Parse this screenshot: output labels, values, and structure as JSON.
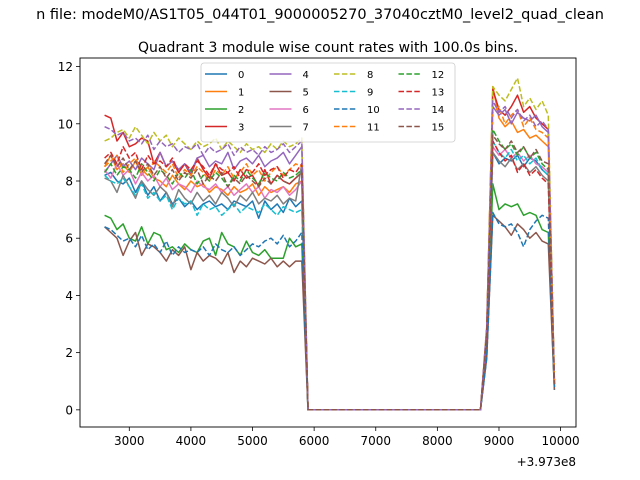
{
  "figure": {
    "suptitle": "n file: modeM0/AS1T05_044T01_9000005270_37040cztM0_level2_quad_clean",
    "offset_label": "+3.973e8"
  },
  "colors": {
    "tab10": [
      "#1f77b4",
      "#ff7f0e",
      "#2ca02c",
      "#d62728",
      "#9467bd",
      "#8c564b",
      "#e377c2",
      "#7f7f7f",
      "#bcbd22",
      "#17becf",
      "#1f77b4",
      "#ff7f0e",
      "#2ca02c",
      "#d62728",
      "#9467bd",
      "#8c564b"
    ]
  },
  "chart_data": {
    "type": "line",
    "title": "Quadrant 3 module wise count rates with 100.0s bins.",
    "xlabel": "",
    "ylabel": "",
    "xlim": [
      2200,
      10250
    ],
    "ylim": [
      -0.6,
      12.3
    ],
    "xticks": [
      3000,
      4000,
      5000,
      6000,
      7000,
      8000,
      9000,
      10000
    ],
    "yticks": [
      0,
      2,
      4,
      6,
      8,
      10,
      12
    ],
    "grid": false,
    "legend": {
      "placement": "upper-center",
      "columns": 4
    },
    "x": [
      2600,
      2700,
      2800,
      2900,
      3000,
      3100,
      3200,
      3300,
      3400,
      3500,
      3600,
      3700,
      3800,
      3900,
      4000,
      4100,
      4200,
      4300,
      4400,
      4500,
      4600,
      4700,
      4800,
      4900,
      5000,
      5100,
      5200,
      5300,
      5400,
      5500,
      5600,
      5700,
      5800,
      5900,
      6000,
      8700,
      8800,
      8900,
      9000,
      9100,
      9200,
      9300,
      9400,
      9500,
      9600,
      9700,
      9800,
      9900
    ],
    "series": [
      {
        "name": "0",
        "style": "solid",
        "values": [
          8.2,
          8.3,
          8.0,
          7.9,
          8.1,
          7.6,
          8.0,
          7.5,
          7.8,
          7.3,
          7.6,
          7.2,
          7.4,
          7.1,
          7.3,
          7.0,
          7.2,
          7.3,
          7.1,
          7.2,
          7.0,
          7.3,
          7.2,
          7.1,
          7.3,
          6.7,
          7.3,
          7.0,
          7.2,
          6.9,
          7.4,
          7.1,
          7.3,
          0.0,
          0.0,
          0.0,
          2.5,
          9.0,
          8.6,
          8.8,
          8.7,
          8.9,
          8.5,
          8.8,
          8.7,
          8.4,
          8.2,
          0.8
        ]
      },
      {
        "name": "1",
        "style": "solid",
        "values": [
          8.5,
          8.9,
          8.4,
          8.6,
          8.3,
          8.7,
          8.2,
          8.5,
          8.1,
          8.0,
          7.8,
          8.2,
          7.9,
          7.7,
          8.0,
          7.8,
          7.9,
          7.6,
          7.8,
          7.7,
          7.5,
          7.8,
          7.6,
          7.7,
          7.9,
          7.5,
          7.8,
          7.6,
          7.7,
          7.8,
          7.6,
          7.9,
          8.0,
          0.0,
          0.0,
          0.0,
          2.7,
          11.3,
          10.2,
          9.9,
          10.1,
          9.7,
          9.8,
          9.5,
          9.6,
          9.4,
          9.2,
          0.9
        ]
      },
      {
        "name": "2",
        "style": "solid",
        "values": [
          6.8,
          6.7,
          6.3,
          6.5,
          6.0,
          5.9,
          6.4,
          5.8,
          6.2,
          6.1,
          5.6,
          5.7,
          5.5,
          5.8,
          5.6,
          5.5,
          5.9,
          6.0,
          5.4,
          6.2,
          5.8,
          5.7,
          5.4,
          5.9,
          5.5,
          5.4,
          5.6,
          5.3,
          5.3,
          5.3,
          6.0,
          5.7,
          5.8,
          0.0,
          0.0,
          0.0,
          1.9,
          7.9,
          7.0,
          7.2,
          7.1,
          7.2,
          6.8,
          6.9,
          6.8,
          6.3,
          6.2,
          0.7
        ]
      },
      {
        "name": "3",
        "style": "solid",
        "values": [
          10.3,
          10.2,
          9.4,
          9.7,
          9.2,
          9.3,
          9.5,
          9.4,
          8.6,
          9.0,
          8.5,
          8.7,
          8.3,
          8.6,
          8.2,
          8.8,
          8.4,
          8.1,
          8.6,
          8.2,
          8.3,
          8.0,
          8.4,
          8.1,
          8.2,
          7.8,
          8.4,
          7.9,
          8.2,
          8.0,
          7.9,
          8.1,
          8.3,
          0.0,
          0.0,
          0.0,
          2.8,
          11.2,
          10.5,
          10.3,
          10.6,
          11.0,
          10.4,
          10.6,
          10.2,
          10.0,
          9.8,
          1.0
        ]
      },
      {
        "name": "4",
        "style": "solid",
        "values": [
          8.3,
          8.6,
          8.9,
          8.5,
          8.7,
          8.4,
          8.8,
          8.6,
          8.4,
          9.0,
          8.5,
          8.7,
          8.4,
          8.6,
          8.3,
          8.8,
          8.9,
          8.5,
          8.7,
          8.6,
          9.0,
          8.4,
          8.7,
          8.8,
          8.6,
          8.9,
          8.5,
          8.7,
          8.8,
          9.0,
          8.6,
          8.9,
          9.2,
          0.0,
          0.0,
          0.0,
          2.6,
          10.6,
          10.3,
          10.5,
          10.0,
          10.4,
          10.2,
          10.1,
          10.3,
          9.9,
          9.7,
          0.9
        ]
      },
      {
        "name": "5",
        "style": "solid",
        "values": [
          6.4,
          6.2,
          6.0,
          5.4,
          5.9,
          6.2,
          5.4,
          5.8,
          5.7,
          5.5,
          5.2,
          5.6,
          5.4,
          5.7,
          4.9,
          5.5,
          5.2,
          5.4,
          5.3,
          5.1,
          5.5,
          4.8,
          5.2,
          5.0,
          5.3,
          5.2,
          5.1,
          5.3,
          5.0,
          5.2,
          5.0,
          5.2,
          5.2,
          0.0,
          0.0,
          0.0,
          1.8,
          6.8,
          6.6,
          6.4,
          6.1,
          6.5,
          6.3,
          6.0,
          6.2,
          5.9,
          5.8,
          0.7
        ]
      },
      {
        "name": "6",
        "style": "solid",
        "values": [
          8.4,
          8.1,
          8.6,
          8.2,
          8.4,
          7.9,
          8.3,
          8.0,
          8.2,
          7.8,
          8.1,
          7.7,
          7.9,
          7.8,
          7.6,
          8.0,
          7.8,
          7.7,
          7.9,
          7.6,
          7.8,
          7.5,
          7.7,
          7.9,
          7.6,
          7.8,
          7.4,
          7.7,
          7.6,
          7.8,
          7.5,
          7.7,
          8.0,
          0.0,
          0.0,
          0.0,
          2.7,
          9.2,
          8.9,
          9.1,
          8.8,
          9.0,
          8.7,
          8.9,
          8.6,
          8.5,
          8.3,
          0.9
        ]
      },
      {
        "name": "7",
        "style": "solid",
        "values": [
          8.1,
          8.0,
          7.6,
          8.2,
          7.8,
          7.4,
          8.0,
          7.7,
          7.5,
          7.8,
          7.6,
          7.1,
          7.7,
          7.4,
          7.2,
          7.6,
          7.3,
          7.5,
          7.2,
          7.6,
          7.4,
          7.1,
          7.5,
          7.3,
          7.6,
          7.2,
          7.4,
          7.3,
          7.5,
          7.2,
          7.4,
          7.3,
          8.6,
          0.0,
          0.0,
          0.0,
          2.6,
          9.0,
          8.7,
          8.5,
          8.8,
          8.4,
          8.6,
          8.3,
          8.5,
          8.2,
          8.0,
          0.8
        ]
      },
      {
        "name": "8",
        "style": "dashed",
        "values": [
          9.4,
          9.5,
          9.7,
          9.8,
          9.5,
          9.9,
          9.6,
          9.3,
          9.7,
          9.4,
          9.6,
          9.2,
          9.5,
          9.3,
          9.1,
          9.4,
          9.2,
          9.3,
          9.5,
          9.1,
          9.4,
          9.2,
          9.0,
          9.3,
          9.1,
          9.2,
          9.0,
          9.3,
          9.1,
          9.4,
          9.2,
          9.3,
          9.5,
          0.0,
          0.0,
          0.0,
          2.9,
          11.3,
          11.0,
          10.8,
          11.2,
          11.6,
          10.6,
          10.9,
          10.5,
          10.8,
          10.3,
          1.0
        ]
      },
      {
        "name": "9",
        "style": "dashed",
        "values": [
          8.2,
          8.0,
          7.9,
          8.1,
          7.8,
          7.5,
          7.9,
          7.4,
          7.6,
          7.3,
          7.5,
          7.0,
          7.4,
          7.2,
          7.3,
          6.8,
          7.2,
          7.0,
          7.1,
          6.8,
          7.0,
          7.2,
          6.9,
          7.1,
          7.0,
          6.9,
          7.2,
          7.0,
          6.8,
          7.1,
          7.0,
          6.9,
          7.0,
          0.0,
          0.0,
          0.0,
          2.5,
          9.4,
          9.0,
          8.8,
          9.1,
          8.7,
          8.9,
          8.6,
          8.8,
          8.4,
          8.2,
          0.8
        ]
      },
      {
        "name": "10",
        "style": "dashed",
        "values": [
          6.4,
          6.3,
          6.1,
          5.9,
          6.0,
          5.7,
          6.1,
          5.6,
          5.8,
          5.5,
          5.9,
          5.4,
          5.7,
          5.5,
          5.6,
          5.5,
          5.7,
          5.4,
          5.8,
          5.6,
          5.5,
          5.7,
          5.4,
          5.6,
          5.8,
          5.7,
          5.9,
          6.0,
          5.8,
          6.1,
          5.7,
          5.9,
          6.2,
          0.0,
          0.0,
          0.0,
          1.8,
          6.9,
          6.5,
          6.4,
          6.5,
          6.2,
          5.7,
          6.3,
          6.6,
          6.8,
          6.7,
          0.7
        ]
      },
      {
        "name": "11",
        "style": "dashed",
        "values": [
          8.5,
          8.7,
          8.9,
          8.3,
          8.6,
          8.8,
          8.4,
          8.2,
          8.7,
          8.5,
          8.3,
          8.6,
          8.1,
          8.4,
          8.2,
          8.5,
          8.3,
          8.0,
          8.4,
          8.2,
          8.5,
          8.1,
          8.3,
          8.6,
          8.2,
          8.4,
          8.0,
          8.3,
          8.5,
          8.2,
          8.4,
          8.6,
          8.5,
          0.0,
          0.0,
          0.0,
          2.8,
          10.4,
          10.6,
          10.0,
          10.3,
          10.5,
          9.9,
          10.2,
          9.8,
          9.7,
          9.5,
          1.0
        ]
      },
      {
        "name": "12",
        "style": "dashed",
        "values": [
          8.3,
          8.6,
          8.2,
          8.5,
          8.4,
          8.1,
          8.6,
          8.3,
          8.0,
          8.4,
          8.2,
          7.9,
          8.3,
          8.1,
          8.4,
          7.9,
          8.2,
          8.0,
          8.3,
          8.1,
          7.8,
          8.2,
          8.0,
          8.4,
          8.1,
          7.9,
          8.3,
          8.1,
          8.0,
          8.3,
          8.1,
          8.2,
          8.4,
          0.0,
          0.0,
          0.0,
          2.7,
          9.8,
          9.4,
          9.1,
          9.3,
          8.9,
          9.2,
          8.8,
          9.0,
          8.6,
          8.4,
          0.9
        ]
      },
      {
        "name": "13",
        "style": "dashed",
        "values": [
          8.8,
          9.0,
          8.6,
          9.2,
          8.8,
          9.0,
          8.4,
          8.9,
          8.6,
          8.7,
          8.5,
          8.8,
          8.3,
          8.6,
          8.4,
          8.7,
          8.5,
          8.2,
          8.6,
          8.4,
          8.3,
          8.5,
          8.1,
          8.4,
          8.3,
          8.6,
          8.2,
          8.4,
          8.5,
          8.1,
          8.4,
          8.3,
          8.6,
          0.0,
          0.0,
          0.0,
          2.7,
          9.4,
          9.0,
          8.7,
          8.9,
          8.3,
          8.6,
          8.2,
          8.4,
          8.1,
          7.9,
          0.9
        ]
      },
      {
        "name": "14",
        "style": "dashed",
        "values": [
          9.9,
          9.8,
          9.6,
          9.7,
          9.4,
          9.5,
          9.3,
          9.6,
          9.1,
          9.4,
          9.2,
          9.3,
          9.0,
          9.2,
          9.1,
          9.3,
          8.9,
          9.2,
          9.0,
          9.1,
          9.3,
          8.9,
          9.2,
          9.0,
          9.1,
          8.9,
          9.2,
          9.0,
          9.1,
          9.3,
          9.0,
          9.2,
          9.4,
          0.0,
          0.0,
          0.0,
          2.9,
          10.8,
          10.4,
          10.6,
          10.2,
          10.5,
          10.1,
          10.3,
          9.9,
          10.1,
          9.8,
          1.0
        ]
      },
      {
        "name": "15",
        "style": "dashed",
        "values": [
          8.6,
          8.9,
          8.5,
          8.8,
          8.4,
          8.7,
          8.3,
          8.6,
          8.2,
          8.5,
          8.1,
          8.4,
          8.0,
          8.3,
          8.1,
          8.4,
          7.9,
          8.2,
          8.0,
          8.3,
          7.8,
          8.1,
          7.9,
          8.2,
          8.0,
          7.8,
          8.1,
          7.9,
          8.2,
          8.0,
          7.9,
          8.1,
          8.3,
          0.0,
          0.0,
          0.0,
          2.6,
          9.6,
          9.3,
          9.1,
          9.4,
          9.0,
          9.2,
          8.8,
          9.1,
          8.7,
          8.6,
          0.9
        ]
      }
    ]
  }
}
